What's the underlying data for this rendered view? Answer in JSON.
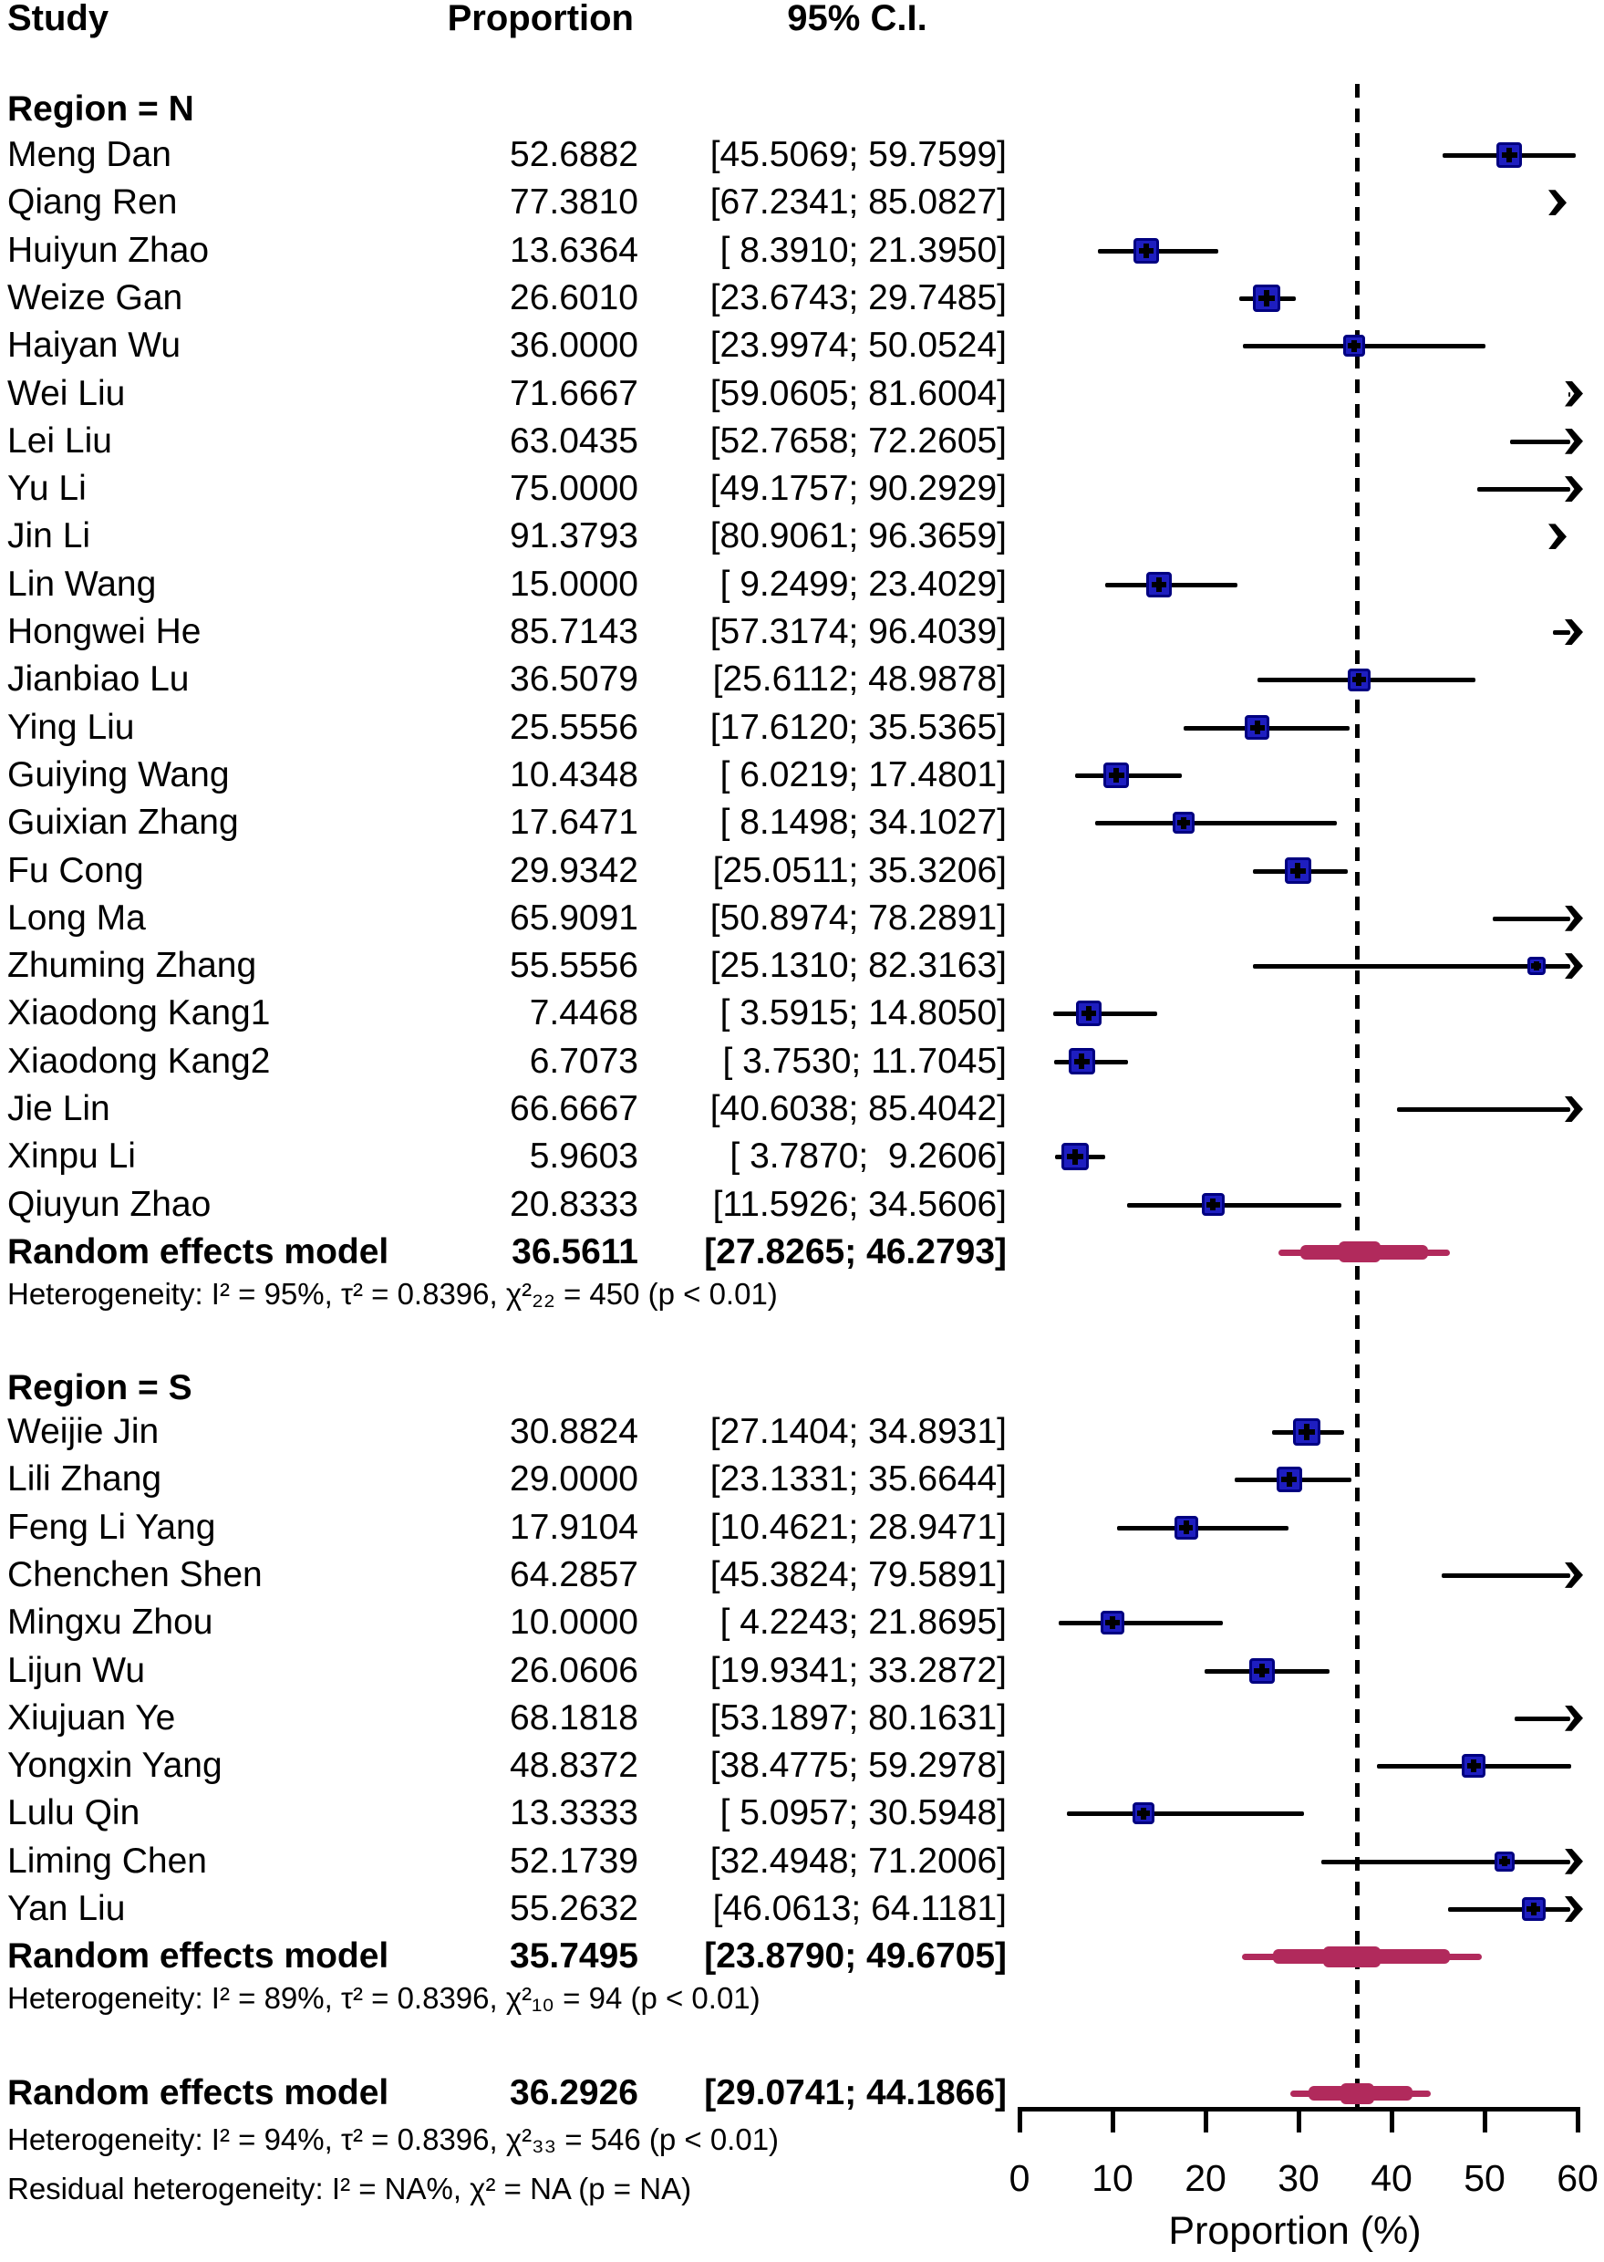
{
  "header": {
    "study": "Study",
    "proportion": "Proportion",
    "ci": "95% C.I."
  },
  "colors": {
    "square_fill": "#1e1ec0",
    "square_border": "#000080",
    "summary_bar": "#b12a5c",
    "ci_line": "#000000",
    "reference_line": "#000000"
  },
  "chart_data": {
    "type": "scatter",
    "variant": "forest-plot",
    "title": "",
    "xlabel": "Proportion (%)",
    "xlim": [
      0,
      60
    ],
    "x_ticks": [
      "0",
      "10",
      "20",
      "30",
      "40",
      "50",
      "60"
    ],
    "x_tick_values": [
      0,
      10,
      20,
      30,
      40,
      50,
      60
    ],
    "reference_line": 36.2926,
    "grid": false,
    "legend": "none",
    "groups": [
      {
        "label": "Region = N",
        "studies": [
          {
            "name": "Meng Dan",
            "prop": "52.6882",
            "ci": "[45.5069; 59.7599]",
            "est": 52.6882,
            "lo": 45.5069,
            "hi": 59.7599,
            "sq": 28
          },
          {
            "name": "Qiang Ren",
            "prop": "77.3810",
            "ci": "[67.2341; 85.0827]",
            "est": 77.381,
            "lo": 67.2341,
            "hi": 85.0827,
            "sq": 27
          },
          {
            "name": "Huiyun Zhao",
            "prop": "13.6364",
            "ci": "[ 8.3910; 21.3950]",
            "est": 13.6364,
            "lo": 8.391,
            "hi": 21.395,
            "sq": 28
          },
          {
            "name": "Weize Gan",
            "prop": "26.6010",
            "ci": "[23.6743; 29.7485]",
            "est": 26.601,
            "lo": 23.6743,
            "hi": 29.7485,
            "sq": 30
          },
          {
            "name": "Haiyan Wu",
            "prop": "36.0000",
            "ci": "[23.9974; 50.0524]",
            "est": 36.0,
            "lo": 23.9974,
            "hi": 50.0524,
            "sq": 24
          },
          {
            "name": "Wei Liu",
            "prop": "71.6667",
            "ci": "[59.0605; 81.6004]",
            "est": 71.6667,
            "lo": 59.0605,
            "hi": 81.6004,
            "sq": 26
          },
          {
            "name": "Lei Liu",
            "prop": "63.0435",
            "ci": "[52.7658; 72.2605]",
            "est": 63.0435,
            "lo": 52.7658,
            "hi": 72.2605,
            "sq": 26
          },
          {
            "name": "Yu Li",
            "prop": "75.0000",
            "ci": "[49.1757; 90.2929]",
            "est": 75.0,
            "lo": 49.1757,
            "hi": 90.2929,
            "sq": 24
          },
          {
            "name": "Jin Li",
            "prop": "91.3793",
            "ci": "[80.9061; 96.3659]",
            "est": 91.3793,
            "lo": 80.9061,
            "hi": 96.3659,
            "sq": 26
          },
          {
            "name": "Lin Wang",
            "prop": "15.0000",
            "ci": "[ 9.2499; 23.4029]",
            "est": 15.0,
            "lo": 9.2499,
            "hi": 23.4029,
            "sq": 28
          },
          {
            "name": "Hongwei He",
            "prop": "85.7143",
            "ci": "[57.3174; 96.4039]",
            "est": 85.7143,
            "lo": 57.3174,
            "hi": 96.4039,
            "sq": 22
          },
          {
            "name": "Jianbiao Lu",
            "prop": "36.5079",
            "ci": "[25.6112; 48.9878]",
            "est": 36.5079,
            "lo": 25.6112,
            "hi": 48.9878,
            "sq": 25
          },
          {
            "name": "Ying Liu",
            "prop": "25.5556",
            "ci": "[17.6120; 35.5365]",
            "est": 25.5556,
            "lo": 17.612,
            "hi": 35.5365,
            "sq": 27
          },
          {
            "name": "Guiying Wang",
            "prop": "10.4348",
            "ci": "[ 6.0219; 17.4801]",
            "est": 10.4348,
            "lo": 6.0219,
            "hi": 17.4801,
            "sq": 28
          },
          {
            "name": "Guixian Zhang",
            "prop": "17.6471",
            "ci": "[ 8.1498; 34.1027]",
            "est": 17.6471,
            "lo": 8.1498,
            "hi": 34.1027,
            "sq": 24
          },
          {
            "name": "Fu Cong",
            "prop": "29.9342",
            "ci": "[25.0511; 35.3206]",
            "est": 29.9342,
            "lo": 25.0511,
            "hi": 35.3206,
            "sq": 29
          },
          {
            "name": "Long Ma",
            "prop": "65.9091",
            "ci": "[50.8974; 78.2891]",
            "est": 65.9091,
            "lo": 50.8974,
            "hi": 78.2891,
            "sq": 25
          },
          {
            "name": "Zhuming Zhang",
            "prop": "55.5556",
            "ci": "[25.1310; 82.3163]",
            "est": 55.5556,
            "lo": 25.131,
            "hi": 82.3163,
            "sq": 20
          },
          {
            "name": "Xiaodong Kang1",
            "prop": "7.4468",
            "ci": "[ 3.5915; 14.8050]",
            "est": 7.4468,
            "lo": 3.5915,
            "hi": 14.805,
            "sq": 28
          },
          {
            "name": "Xiaodong Kang2",
            "prop": "6.7073",
            "ci": "[ 3.7530; 11.7045]",
            "est": 6.7073,
            "lo": 3.753,
            "hi": 11.7045,
            "sq": 29
          },
          {
            "name": "Jie Lin",
            "prop": "66.6667",
            "ci": "[40.6038; 85.4042]",
            "est": 66.6667,
            "lo": 40.6038,
            "hi": 85.4042,
            "sq": 22
          },
          {
            "name": "Xinpu Li",
            "prop": "5.9603",
            "ci": "[ 3.7870;  9.2606]",
            "est": 5.9603,
            "lo": 3.787,
            "hi": 9.2606,
            "sq": 30
          },
          {
            "name": "Qiuyun Zhao",
            "prop": "20.8333",
            "ci": "[11.5926; 34.5606]",
            "est": 20.8333,
            "lo": 11.5926,
            "hi": 34.5606,
            "sq": 25
          }
        ],
        "summary": {
          "name": "Random effects model",
          "prop": "36.5611",
          "ci": "[27.8265; 46.2793]",
          "est": 36.5611,
          "lo": 27.8265,
          "hi": 46.2793
        },
        "heterogeneity": "Heterogeneity: I² = 95%, τ² = 0.8396, χ²₂₂ = 450 (p < 0.01)"
      },
      {
        "label": "Region = S",
        "studies": [
          {
            "name": "Weijie Jin",
            "prop": "30.8824",
            "ci": "[27.1404; 34.8931]",
            "est": 30.8824,
            "lo": 27.1404,
            "hi": 34.8931,
            "sq": 30
          },
          {
            "name": "Lili Zhang",
            "prop": "29.0000",
            "ci": "[23.1331; 35.6644]",
            "est": 29.0,
            "lo": 23.1331,
            "hi": 35.6644,
            "sq": 28
          },
          {
            "name": "Feng Li Yang",
            "prop": "17.9104",
            "ci": "[10.4621; 28.9471]",
            "est": 17.9104,
            "lo": 10.4621,
            "hi": 28.9471,
            "sq": 26
          },
          {
            "name": "Chenchen Shen",
            "prop": "64.2857",
            "ci": "[45.3824; 79.5891]",
            "est": 64.2857,
            "lo": 45.3824,
            "hi": 79.5891,
            "sq": 24
          },
          {
            "name": "Mingxu Zhou",
            "prop": "10.0000",
            "ci": "[ 4.2243; 21.8695]",
            "est": 10.0,
            "lo": 4.2243,
            "hi": 21.8695,
            "sq": 26
          },
          {
            "name": "Lijun Wu",
            "prop": "26.0606",
            "ci": "[19.9341; 33.2872]",
            "est": 26.0606,
            "lo": 19.9341,
            "hi": 33.2872,
            "sq": 28
          },
          {
            "name": "Xiujuan Ye",
            "prop": "68.1818",
            "ci": "[53.1897; 80.1631]",
            "est": 68.1818,
            "lo": 53.1897,
            "hi": 80.1631,
            "sq": 25
          },
          {
            "name": "Yongxin Yang",
            "prop": "48.8372",
            "ci": "[38.4775; 59.2978]",
            "est": 48.8372,
            "lo": 38.4775,
            "hi": 59.2978,
            "sq": 26
          },
          {
            "name": "Lulu Qin",
            "prop": "13.3333",
            "ci": "[ 5.0957; 30.5948]",
            "est": 13.3333,
            "lo": 5.0957,
            "hi": 30.5948,
            "sq": 24
          },
          {
            "name": "Liming Chen",
            "prop": "52.1739",
            "ci": "[32.4948; 71.2006]",
            "est": 52.1739,
            "lo": 32.4948,
            "hi": 71.2006,
            "sq": 22
          },
          {
            "name": "Yan Liu",
            "prop": "55.2632",
            "ci": "[46.0613; 64.1181]",
            "est": 55.2632,
            "lo": 46.0613,
            "hi": 64.1181,
            "sq": 26
          }
        ],
        "summary": {
          "name": "Random effects model",
          "prop": "35.7495",
          "ci": "[23.8790; 49.6705]",
          "est": 35.7495,
          "lo": 23.879,
          "hi": 49.6705
        },
        "heterogeneity": "Heterogeneity: I² = 89%, τ² = 0.8396, χ²₁₀ = 94 (p < 0.01)"
      }
    ],
    "overall": {
      "summary": {
        "name": "Random effects model",
        "prop": "36.2926",
        "ci": "[29.0741; 44.1866]",
        "est": 36.2926,
        "lo": 29.0741,
        "hi": 44.1866
      },
      "heterogeneity": "Heterogeneity: I² = 94%, τ² = 0.8396, χ²₃₃ = 546 (p < 0.01)",
      "residual": "Residual heterogeneity: I² = NA%, χ² = NA (p = NA)"
    }
  }
}
